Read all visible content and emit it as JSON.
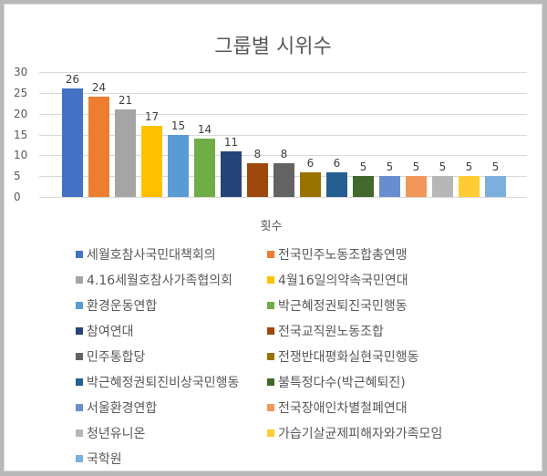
{
  "chart_data": {
    "type": "bar",
    "title": "그룹별 시위수",
    "xlabel": "횟수",
    "ylabel": "",
    "ylim": [
      0,
      30
    ],
    "yticks": [
      0,
      5,
      10,
      15,
      20,
      25,
      30
    ],
    "grid": true,
    "legend_position": "bottom",
    "categories": [
      "횟수"
    ],
    "series": [
      {
        "name": "세월호참사국민대책회의",
        "values": [
          26
        ],
        "color": "#4472c4"
      },
      {
        "name": "전국민주노동조합총연맹",
        "values": [
          24
        ],
        "color": "#ed7d31"
      },
      {
        "name": "4.16세월호참사가족협의회",
        "values": [
          21
        ],
        "color": "#a5a5a5"
      },
      {
        "name": "4월16일의약속국민연대",
        "values": [
          17
        ],
        "color": "#ffc000"
      },
      {
        "name": "환경운동연합",
        "values": [
          15
        ],
        "color": "#5b9bd5"
      },
      {
        "name": "박근혜정권퇴진국민행동",
        "values": [
          14
        ],
        "color": "#70ad47"
      },
      {
        "name": "참여연대",
        "values": [
          11
        ],
        "color": "#264478"
      },
      {
        "name": "전국교직원노동조합",
        "values": [
          8
        ],
        "color": "#9e480e"
      },
      {
        "name": "민주통합당",
        "values": [
          8
        ],
        "color": "#636363"
      },
      {
        "name": "전쟁반대평화실현국민행동",
        "values": [
          6
        ],
        "color": "#997300"
      },
      {
        "name": "박근혜정권퇴진비상국민행동",
        "values": [
          6
        ],
        "color": "#255e91"
      },
      {
        "name": "불특정다수(박근혜퇴진)",
        "values": [
          5
        ],
        "color": "#43682b"
      },
      {
        "name": "서울환경연합",
        "values": [
          5
        ],
        "color": "#698ed0"
      },
      {
        "name": "전국장애인차별철폐연대",
        "values": [
          5
        ],
        "color": "#f1975a"
      },
      {
        "name": "청년유니온",
        "values": [
          5
        ],
        "color": "#b7b7b7"
      },
      {
        "name": "가습기살균제피해자와가족모임",
        "values": [
          5
        ],
        "color": "#ffcd33"
      },
      {
        "name": "국학원",
        "values": [
          5
        ],
        "color": "#7cafdd"
      }
    ]
  }
}
